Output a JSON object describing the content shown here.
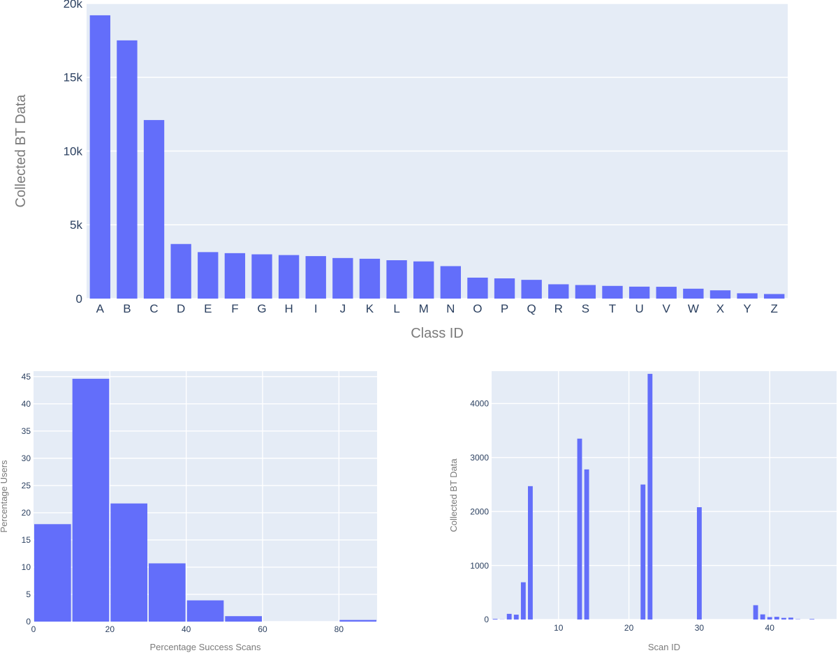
{
  "chart_data": [
    {
      "type": "bar",
      "xlabel": "Class ID",
      "ylabel": "Collected BT Data",
      "ylim": [
        0,
        20000
      ],
      "yticks": [
        0,
        5000,
        10000,
        15000,
        20000
      ],
      "ytick_labels": [
        "0",
        "5k",
        "10k",
        "15k",
        "20k"
      ],
      "grid": true,
      "categories": [
        "A",
        "B",
        "C",
        "D",
        "E",
        "F",
        "G",
        "H",
        "I",
        "J",
        "K",
        "L",
        "M",
        "N",
        "O",
        "P",
        "Q",
        "R",
        "S",
        "T",
        "U",
        "V",
        "W",
        "X",
        "Y",
        "Z"
      ],
      "values": [
        19200,
        17500,
        12100,
        3700,
        3150,
        3080,
        3000,
        2950,
        2880,
        2750,
        2700,
        2600,
        2520,
        2200,
        1420,
        1370,
        1270,
        970,
        920,
        860,
        810,
        800,
        670,
        560,
        360,
        310
      ]
    },
    {
      "type": "bar",
      "xlabel": "Percentage Success Scans",
      "ylabel": "Percentage Users",
      "xlim": [
        0,
        90
      ],
      "ylim": [
        0,
        46
      ],
      "xticks": [
        0,
        20,
        40,
        60,
        80
      ],
      "yticks": [
        0,
        5,
        10,
        15,
        20,
        25,
        30,
        35,
        40,
        45
      ],
      "grid": true,
      "bins": [
        [
          0,
          10
        ],
        [
          10,
          20
        ],
        [
          20,
          30
        ],
        [
          30,
          40
        ],
        [
          40,
          50
        ],
        [
          50,
          60
        ],
        [
          60,
          70
        ],
        [
          70,
          80
        ],
        [
          80,
          90
        ]
      ],
      "values": [
        17.9,
        44.6,
        21.7,
        10.7,
        3.9,
        1.0,
        0,
        0,
        0.3
      ]
    },
    {
      "type": "bar",
      "xlabel": "Scan ID",
      "ylabel": "Collected BT Data",
      "xlim": [
        0.5,
        49.5
      ],
      "ylim": [
        0,
        4600
      ],
      "xticks": [
        10,
        20,
        30,
        40
      ],
      "yticks": [
        0,
        1000,
        2000,
        3000,
        4000
      ],
      "grid": true,
      "x": [
        1,
        2,
        3,
        4,
        5,
        6,
        7,
        8,
        9,
        10,
        11,
        12,
        13,
        14,
        15,
        16,
        17,
        18,
        19,
        20,
        21,
        22,
        23,
        24,
        25,
        26,
        27,
        28,
        29,
        30,
        31,
        32,
        33,
        34,
        35,
        36,
        37,
        38,
        39,
        40,
        41,
        42,
        43,
        44,
        45,
        46,
        47,
        48,
        49
      ],
      "values": [
        12,
        3,
        105,
        90,
        690,
        2470,
        0,
        0,
        0,
        0,
        0,
        0,
        3350,
        2780,
        0,
        0,
        0,
        0,
        0,
        0,
        0,
        2500,
        4550,
        0,
        0,
        0,
        0,
        0,
        0,
        2080,
        0,
        0,
        0,
        0,
        0,
        0,
        0,
        265,
        95,
        45,
        50,
        30,
        35,
        5,
        0,
        10,
        0,
        0,
        0
      ]
    }
  ]
}
